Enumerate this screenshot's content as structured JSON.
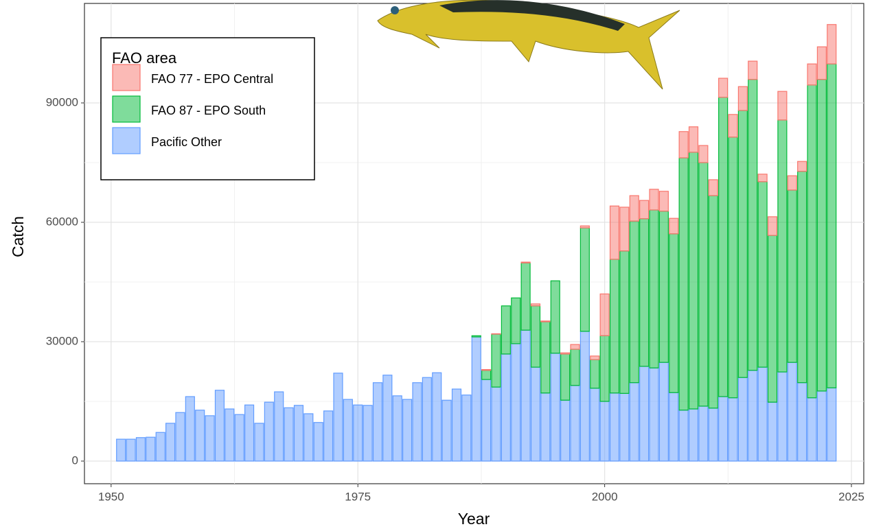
{
  "chart_data": {
    "type": "stacked-bar",
    "xlabel": "Year",
    "ylabel": "Catch",
    "legend_title": "FAO area",
    "legend_position": "top-left",
    "xlim": [
      1947.3,
      2026.25
    ],
    "xticks": [
      1950,
      1975,
      2000,
      2025
    ],
    "ylim": [
      -5690,
      115000
    ],
    "yticks": [
      0,
      30000,
      60000,
      90000
    ],
    "grid": true,
    "x": [
      1951,
      1952,
      1953,
      1954,
      1955,
      1956,
      1957,
      1958,
      1959,
      1960,
      1961,
      1962,
      1963,
      1964,
      1965,
      1966,
      1967,
      1968,
      1969,
      1970,
      1971,
      1972,
      1973,
      1974,
      1975,
      1976,
      1977,
      1978,
      1979,
      1980,
      1981,
      1982,
      1983,
      1984,
      1985,
      1986,
      1987,
      1988,
      1989,
      1990,
      1991,
      1992,
      1993,
      1994,
      1995,
      1996,
      1997,
      1998,
      1999,
      2000,
      2001,
      2002,
      2003,
      2004,
      2005,
      2006,
      2007,
      2008,
      2009,
      2010,
      2011,
      2012,
      2013,
      2014,
      2015,
      2016,
      2017,
      2018,
      2019,
      2020,
      2021,
      2022,
      2023
    ],
    "series": [
      {
        "name": "FAO 77 - EPO Central",
        "color": "#f8766d",
        "values": [
          0,
          0,
          0,
          0,
          0,
          0,
          0,
          0,
          0,
          0,
          0,
          0,
          0,
          0,
          0,
          0,
          0,
          0,
          0,
          0,
          0,
          0,
          0,
          0,
          0,
          0,
          0,
          0,
          0,
          0,
          0,
          0,
          0,
          0,
          0,
          0,
          0,
          200,
          100,
          0,
          0,
          200,
          500,
          200,
          0,
          300,
          1200,
          500,
          900,
          10500,
          13400,
          11000,
          6400,
          4600,
          5200,
          5000,
          3900,
          6600,
          6400,
          4300,
          4000,
          4800,
          5700,
          6000,
          4600,
          1900,
          4700,
          7200,
          3600,
          2500,
          5300,
          8200,
          9900
        ]
      },
      {
        "name": "FAO 87 - EPO South",
        "color": "#00ba38",
        "values": [
          0,
          0,
          0,
          0,
          0,
          0,
          0,
          0,
          0,
          0,
          0,
          0,
          0,
          0,
          0,
          0,
          0,
          0,
          0,
          0,
          0,
          0,
          0,
          0,
          0,
          0,
          0,
          0,
          0,
          0,
          0,
          0,
          0,
          0,
          0,
          0,
          300,
          2300,
          13300,
          12100,
          11500,
          16900,
          15400,
          17900,
          18200,
          11600,
          9100,
          26000,
          7200,
          16500,
          33600,
          35800,
          40600,
          37100,
          39700,
          38000,
          39900,
          63400,
          64500,
          61200,
          53400,
          75200,
          65500,
          67100,
          73100,
          46600,
          41900,
          63300,
          43300,
          53100,
          78600,
          78300,
          81400
        ]
      },
      {
        "name": "Pacific Other",
        "color": "#619cff",
        "values": [
          5500,
          5500,
          5900,
          6000,
          7200,
          9500,
          12200,
          16200,
          12800,
          11400,
          17800,
          13100,
          11700,
          14100,
          9500,
          14800,
          17400,
          13400,
          14000,
          11900,
          9700,
          12600,
          22100,
          15500,
          14100,
          14000,
          19700,
          21600,
          16400,
          15500,
          19700,
          21000,
          22200,
          15300,
          18100,
          16600,
          31200,
          20500,
          18600,
          26900,
          29500,
          32900,
          23600,
          17100,
          27100,
          15300,
          19000,
          32600,
          18300,
          15000,
          17100,
          17000,
          19700,
          23800,
          23400,
          24800,
          17200,
          12800,
          13100,
          13800,
          13300,
          16200,
          15900,
          21000,
          22800,
          23600,
          14800,
          22400,
          24800,
          19700,
          15900,
          17600,
          18400
        ]
      }
    ]
  }
}
